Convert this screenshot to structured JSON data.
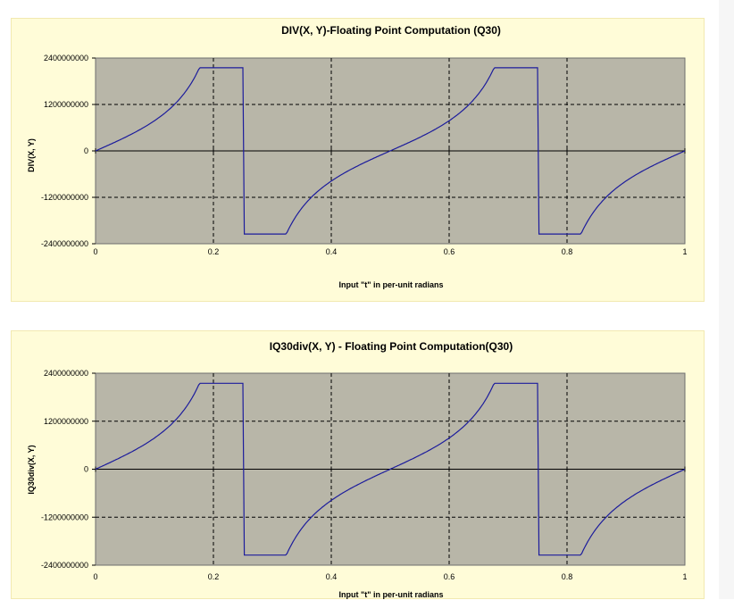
{
  "chart_data": [
    {
      "type": "line",
      "title": "DIV(X, Y)-Floating Point Computation (Q30)",
      "xlabel": "Input \"t\" in per-unit radians",
      "ylabel": "DIV(X, Y)",
      "xlim": [
        0,
        1
      ],
      "ylim": [
        -2400000000,
        2400000000
      ],
      "x_ticks": [
        0,
        0.2,
        0.4,
        0.6,
        0.8,
        1
      ],
      "x_tick_labels": [
        "0",
        "0.2",
        "0.4",
        "0.6",
        "0.8",
        "1"
      ],
      "y_ticks": [
        2400000000,
        1200000000,
        0,
        -1200000000,
        -2400000000
      ],
      "y_tick_labels": [
        "2400000000",
        "1200000000",
        "0",
        "-1200000000",
        "-2400000000"
      ],
      "grid": true,
      "background": "#b8b6a8",
      "line_color": "#1c1c9c",
      "series": [
        {
          "function": "2^30 * tan(2*pi*t)",
          "saturation": [
            -2147483648,
            2147483647
          ],
          "x_range": [
            0,
            1
          ],
          "samples": 400
        }
      ]
    },
    {
      "type": "line",
      "title": "IQ30div(X, Y) - Floating Point Computation(Q30)",
      "xlabel": "Input \"t\" in per-unit radians",
      "ylabel": "IQ30div(X, Y)",
      "xlim": [
        0,
        1
      ],
      "ylim": [
        -2400000000,
        2400000000
      ],
      "x_ticks": [
        0,
        0.2,
        0.4,
        0.6,
        0.8,
        1
      ],
      "x_tick_labels": [
        "0",
        "0.2",
        "0.4",
        "0.6",
        "0.8",
        "1"
      ],
      "y_ticks": [
        2400000000,
        1200000000,
        0,
        -1200000000,
        -2400000000
      ],
      "y_tick_labels": [
        "2400000000",
        "1200000000",
        "0",
        "-1200000000",
        "-2400000000"
      ],
      "grid": true,
      "background": "#b8b6a8",
      "line_color": "#1c1c9c",
      "series": [
        {
          "function": "2^30 * tan(2*pi*t)",
          "saturation": [
            -2147483648,
            2147483647
          ],
          "x_range": [
            0,
            1
          ],
          "samples": 400
        }
      ]
    }
  ]
}
